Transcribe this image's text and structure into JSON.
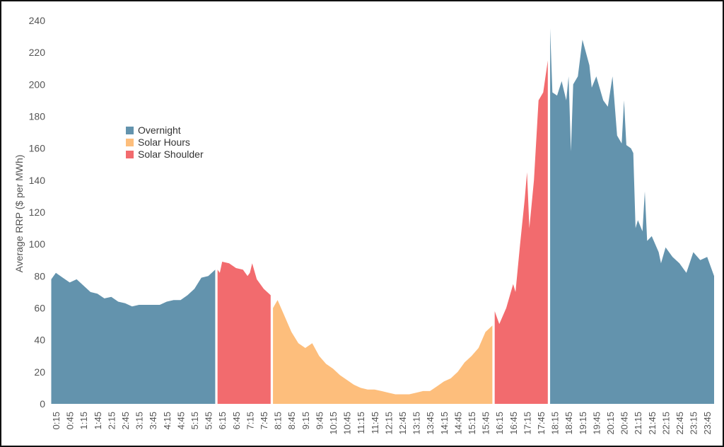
{
  "chart_data": {
    "type": "area",
    "title": "",
    "xlabel": "",
    "ylabel": "Average RRP ($ per MWh)",
    "ylim": [
      0,
      240
    ],
    "yticks": [
      0,
      20,
      40,
      60,
      80,
      100,
      120,
      140,
      160,
      180,
      200,
      220,
      240
    ],
    "xticks": [
      "0:15",
      "0:45",
      "1:15",
      "1:45",
      "2:15",
      "2:45",
      "3:15",
      "3:45",
      "4:15",
      "4:45",
      "5:15",
      "5:45",
      "6:15",
      "6:45",
      "7:15",
      "7:45",
      "8:15",
      "8:45",
      "9:15",
      "9:45",
      "10:15",
      "10:45",
      "11:15",
      "11:45",
      "12:15",
      "12:45",
      "13:15",
      "13:45",
      "14:15",
      "14:45",
      "15:15",
      "15:45",
      "16:15",
      "16:45",
      "17:15",
      "17:45",
      "18:15",
      "18:45",
      "19:15",
      "19:45",
      "20:15",
      "20:45",
      "21:15",
      "21:45",
      "22:15",
      "22:45",
      "23:15",
      "23:45"
    ],
    "legend_position": "upper-left",
    "grid": false,
    "series": [
      {
        "name": "Overnight",
        "color": "#6393ad"
      },
      {
        "name": "Solar Hours",
        "color": "#fdbe7c"
      },
      {
        "name": "Solar Shoulder",
        "color": "#f26b6e"
      }
    ],
    "segments": [
      {
        "series": "Overnight",
        "points": [
          [
            "0:05",
            78
          ],
          [
            "0:15",
            82
          ],
          [
            "0:30",
            79
          ],
          [
            "0:45",
            76
          ],
          [
            "1:00",
            78
          ],
          [
            "1:15",
            74
          ],
          [
            "1:30",
            70
          ],
          [
            "1:45",
            69
          ],
          [
            "2:00",
            66
          ],
          [
            "2:15",
            67
          ],
          [
            "2:30",
            64
          ],
          [
            "2:45",
            63
          ],
          [
            "3:00",
            61
          ],
          [
            "3:15",
            62
          ],
          [
            "3:30",
            62
          ],
          [
            "3:45",
            62
          ],
          [
            "4:00",
            62
          ],
          [
            "4:15",
            64
          ],
          [
            "4:30",
            65
          ],
          [
            "4:45",
            65
          ],
          [
            "5:00",
            68
          ],
          [
            "5:15",
            72
          ],
          [
            "5:30",
            79
          ],
          [
            "5:45",
            80
          ],
          [
            "6:00",
            84
          ]
        ]
      },
      {
        "series": "Solar Shoulder",
        "points": [
          [
            "6:05",
            84
          ],
          [
            "6:10",
            82
          ],
          [
            "6:15",
            89
          ],
          [
            "6:30",
            88
          ],
          [
            "6:45",
            85
          ],
          [
            "7:00",
            84
          ],
          [
            "7:10",
            80
          ],
          [
            "7:15",
            82
          ],
          [
            "7:20",
            88
          ],
          [
            "7:30",
            78
          ],
          [
            "7:45",
            72
          ],
          [
            "8:00",
            68
          ]
        ]
      },
      {
        "series": "Solar Hours",
        "points": [
          [
            "8:05",
            60
          ],
          [
            "8:15",
            65
          ],
          [
            "8:30",
            55
          ],
          [
            "8:45",
            45
          ],
          [
            "9:00",
            38
          ],
          [
            "9:15",
            35
          ],
          [
            "9:30",
            38
          ],
          [
            "9:45",
            30
          ],
          [
            "10:00",
            25
          ],
          [
            "10:15",
            22
          ],
          [
            "10:30",
            18
          ],
          [
            "10:45",
            15
          ],
          [
            "11:00",
            12
          ],
          [
            "11:15",
            10
          ],
          [
            "11:30",
            9
          ],
          [
            "11:45",
            9
          ],
          [
            "12:00",
            8
          ],
          [
            "12:15",
            7
          ],
          [
            "12:30",
            6
          ],
          [
            "12:45",
            6
          ],
          [
            "13:00",
            6
          ],
          [
            "13:15",
            7
          ],
          [
            "13:30",
            8
          ],
          [
            "13:45",
            8
          ],
          [
            "14:00",
            11
          ],
          [
            "14:15",
            14
          ],
          [
            "14:30",
            16
          ],
          [
            "14:45",
            20
          ],
          [
            "15:00",
            26
          ],
          [
            "15:15",
            30
          ],
          [
            "15:30",
            35
          ],
          [
            "15:45",
            45
          ],
          [
            "16:00",
            49
          ]
        ]
      },
      {
        "series": "Solar Shoulder",
        "points": [
          [
            "16:05",
            58
          ],
          [
            "16:15",
            50
          ],
          [
            "16:30",
            60
          ],
          [
            "16:45",
            75
          ],
          [
            "16:50",
            70
          ],
          [
            "17:00",
            100
          ],
          [
            "17:10",
            128
          ],
          [
            "17:15",
            145
          ],
          [
            "17:20",
            110
          ],
          [
            "17:30",
            140
          ],
          [
            "17:40",
            190
          ],
          [
            "17:50",
            195
          ],
          [
            "18:00",
            215
          ]
        ]
      },
      {
        "series": "Overnight",
        "points": [
          [
            "18:05",
            235
          ],
          [
            "18:10",
            195
          ],
          [
            "18:20",
            193
          ],
          [
            "18:30",
            202
          ],
          [
            "18:40",
            190
          ],
          [
            "18:45",
            205
          ],
          [
            "18:50",
            158
          ],
          [
            "18:55",
            200
          ],
          [
            "19:05",
            205
          ],
          [
            "19:15",
            228
          ],
          [
            "19:30",
            212
          ],
          [
            "19:35",
            198
          ],
          [
            "19:45",
            205
          ],
          [
            "20:00",
            190
          ],
          [
            "20:10",
            186
          ],
          [
            "20:20",
            205
          ],
          [
            "20:30",
            168
          ],
          [
            "20:40",
            163
          ],
          [
            "20:45",
            190
          ],
          [
            "20:50",
            162
          ],
          [
            "21:00",
            160
          ],
          [
            "21:05",
            157
          ],
          [
            "21:10",
            110
          ],
          [
            "21:15",
            115
          ],
          [
            "21:25",
            108
          ],
          [
            "21:30",
            133
          ],
          [
            "21:35",
            102
          ],
          [
            "21:45",
            105
          ],
          [
            "22:00",
            95
          ],
          [
            "22:05",
            88
          ],
          [
            "22:15",
            98
          ],
          [
            "22:30",
            92
          ],
          [
            "22:45",
            88
          ],
          [
            "23:00",
            82
          ],
          [
            "23:15",
            95
          ],
          [
            "23:30",
            90
          ],
          [
            "23:45",
            92
          ],
          [
            "24:00",
            80
          ]
        ]
      }
    ]
  }
}
